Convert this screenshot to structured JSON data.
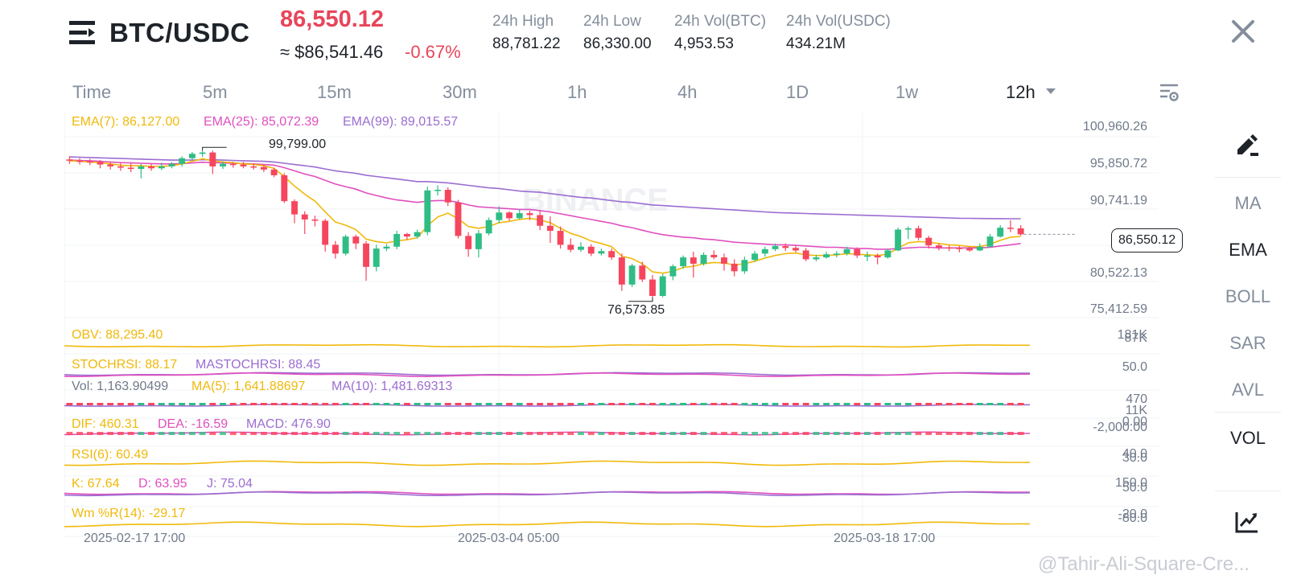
{
  "header": {
    "pair": "BTC/USDC",
    "last_price": "86,550.12",
    "approx_usd": "≈ $86,541.46",
    "change_pct": "-0.67%",
    "stats": [
      {
        "label": "24h High",
        "value": "88,781.22"
      },
      {
        "label": "24h Low",
        "value": "86,330.00"
      },
      {
        "label": "24h Vol(BTC)",
        "value": "4,953.53"
      },
      {
        "label": "24h Vol(USDC)",
        "value": "434.21M"
      }
    ]
  },
  "intervals": [
    "Time",
    "5m",
    "15m",
    "30m",
    "1h",
    "4h",
    "1D",
    "1w",
    "12h"
  ],
  "active_interval": "12h",
  "legend": {
    "ema7": "EMA(7): 86,127.00",
    "ema25": "EMA(25): 85,072.39",
    "ema99": "EMA(99): 89,015.57",
    "high_marker": "99,799.00",
    "low_marker": "76,573.85",
    "current_price_tag": "86,550.12"
  },
  "price_axis": [
    "100,960.26",
    "95,850.72",
    "90,741.19",
    "80,522.13",
    "75,412.59"
  ],
  "indicators": {
    "obv": "OBV: 88,295.40",
    "obv_axis": [
      "181K",
      "87K"
    ],
    "stochrsi": "STOCHRSI: 88.17",
    "mastochrsi": "MASTOCHRSI: 88.45",
    "stoch_axis": "50.0",
    "vol": "Vol: 1,163.90499",
    "vol_ma5": "MA(5): 1,641.88697",
    "vol_ma10": "MA(10): 1,481.69313",
    "vol_axis": [
      "470",
      "11K"
    ],
    "dif": "DIF: 460.31",
    "dea": "DEA: -16.59",
    "macd": "MACD: 476.90",
    "macd_axis": [
      "0.00",
      "-2,000.00"
    ],
    "rsi": "RSI(6): 60.49",
    "rsi_axis": [
      "40.0",
      "30.0"
    ],
    "k": "K: 67.64",
    "d": "D: 63.95",
    "j": "J: 75.04",
    "kdj_axis": [
      "150.0",
      "50.0"
    ],
    "wr": "Wm %R(14): -29.17",
    "wr_axis": [
      "-20.0",
      "-80.0"
    ]
  },
  "time_axis": [
    "2025-02-17 17:00",
    "2025-03-04 05:00",
    "2025-03-18 17:00"
  ],
  "tools": [
    "MA",
    "EMA",
    "BOLL",
    "SAR",
    "AVL",
    "VOL"
  ],
  "active_tools": [
    "EMA",
    "VOL"
  ],
  "chart_watermark": "BINANCE",
  "watermark": "@Tahir-Ali-Square-Cre...",
  "colors": {
    "up": "#2ebd85",
    "down": "#f6465d",
    "ema7": "#f0b90b",
    "ema25": "#e04fbf",
    "ema99": "#9b6dd1",
    "accent_red": "#e8455b"
  },
  "chart_data": {
    "type": "candlestick",
    "price_range": [
      74000,
      102000
    ],
    "candles": [
      [
        98400,
        98200,
        98900,
        97700
      ],
      [
        98200,
        98100,
        98600,
        97600
      ],
      [
        98100,
        98000,
        98500,
        97500
      ],
      [
        98000,
        97600,
        98300,
        97000
      ],
      [
        97600,
        97300,
        98000,
        96800
      ],
      [
        97300,
        97100,
        97800,
        96600
      ],
      [
        97100,
        96900,
        97800,
        96400
      ],
      [
        96900,
        97300,
        97700,
        95400
      ],
      [
        97300,
        97000,
        97700,
        96600
      ],
      [
        97000,
        97300,
        97900,
        96700
      ],
      [
        97300,
        97700,
        98000,
        97000
      ],
      [
        97700,
        98600,
        98900,
        97300
      ],
      [
        98600,
        99300,
        99600,
        98300
      ],
      [
        99300,
        99500,
        99800,
        98800
      ],
      [
        99500,
        97300,
        99799,
        96100
      ],
      [
        97300,
        97700,
        98100,
        96900
      ],
      [
        97700,
        97600,
        98000,
        97100
      ],
      [
        97600,
        97300,
        98000,
        97000
      ],
      [
        97300,
        97200,
        97700,
        96800
      ],
      [
        97200,
        96800,
        97600,
        96400
      ],
      [
        96800,
        95900,
        97100,
        95600
      ],
      [
        95900,
        91800,
        96200,
        91500
      ],
      [
        91800,
        89700,
        92100,
        88300
      ],
      [
        89700,
        88900,
        90200,
        86600
      ],
      [
        88900,
        88700,
        89500,
        87800
      ],
      [
        88700,
        84900,
        89000,
        83800
      ],
      [
        84900,
        83500,
        85500,
        82700
      ],
      [
        83500,
        86200,
        86500,
        83200
      ],
      [
        86200,
        85100,
        86500,
        84200
      ],
      [
        85100,
        81400,
        85500,
        79200
      ],
      [
        81400,
        84300,
        84900,
        80700
      ],
      [
        84300,
        84600,
        85000,
        83900
      ],
      [
        84600,
        86600,
        87100,
        84200
      ],
      [
        86600,
        86200,
        86800,
        85700
      ],
      [
        86200,
        86900,
        87300,
        85900
      ],
      [
        86900,
        93500,
        94100,
        86400
      ],
      [
        93500,
        93600,
        94300,
        92700
      ],
      [
        93600,
        91600,
        94000,
        91000
      ],
      [
        91600,
        86300,
        92000,
        85900
      ],
      [
        86300,
        84200,
        86900,
        83000
      ],
      [
        84200,
        86700,
        87200,
        82900
      ],
      [
        86700,
        88800,
        89200,
        86400
      ],
      [
        88800,
        90000,
        91000,
        88300
      ],
      [
        90000,
        89100,
        90200,
        88700
      ],
      [
        89100,
        89900,
        90500,
        88900
      ],
      [
        89900,
        89600,
        90300,
        88800
      ],
      [
        89600,
        87900,
        90300,
        87200
      ],
      [
        87900,
        87100,
        89400,
        85200
      ],
      [
        87100,
        84900,
        87800,
        84300
      ],
      [
        84900,
        84100,
        85900,
        83700
      ],
      [
        84100,
        84600,
        85300,
        83800
      ],
      [
        84600,
        83500,
        85000,
        83100
      ],
      [
        83500,
        83900,
        84300,
        83200
      ],
      [
        83900,
        82900,
        84300,
        82500
      ],
      [
        82900,
        78600,
        83500,
        77600
      ],
      [
        78600,
        81600,
        81900,
        78200
      ],
      [
        81600,
        79400,
        82200,
        79000
      ],
      [
        79400,
        76800,
        80100,
        76573.85
      ],
      [
        76800,
        79900,
        80300,
        76600
      ],
      [
        79900,
        81500,
        81800,
        79300
      ],
      [
        81500,
        82900,
        83200,
        81100
      ],
      [
        82900,
        81900,
        83800,
        79700
      ],
      [
        81900,
        83300,
        83700,
        81600
      ],
      [
        83300,
        82900,
        84000,
        82600
      ],
      [
        82900,
        81900,
        83500,
        80800
      ],
      [
        81900,
        80700,
        82600,
        79900
      ],
      [
        80700,
        82500,
        83000,
        80300
      ],
      [
        82500,
        83500,
        83900,
        82200
      ],
      [
        83500,
        84200,
        84600,
        83000
      ],
      [
        84200,
        84700,
        85100,
        83900
      ],
      [
        84700,
        84400,
        85100,
        83900
      ],
      [
        84400,
        84000,
        84800,
        83700
      ],
      [
        84000,
        82600,
        84400,
        82300
      ],
      [
        82600,
        82900,
        83300,
        82300
      ],
      [
        82900,
        83400,
        83800,
        82700
      ],
      [
        83400,
        83500,
        83900,
        82900
      ],
      [
        83500,
        84200,
        84600,
        83200
      ],
      [
        84200,
        83200,
        84500,
        82800
      ],
      [
        83200,
        83200,
        83800,
        82300
      ],
      [
        83200,
        82900,
        83500,
        81800
      ],
      [
        82900,
        84000,
        84300,
        82700
      ],
      [
        84000,
        87300,
        87600,
        83900
      ],
      [
        87300,
        87500,
        87800,
        85800
      ],
      [
        87500,
        86000,
        87900,
        85600
      ],
      [
        86000,
        84800,
        86300,
        84300
      ],
      [
        84800,
        84500,
        85100,
        84000
      ],
      [
        84500,
        84400,
        84800,
        83900
      ],
      [
        84400,
        84300,
        84700,
        83700
      ],
      [
        84300,
        84000,
        84600,
        83800
      ],
      [
        84000,
        84600,
        85100,
        83900
      ],
      [
        84600,
        86200,
        86600,
        84400
      ],
      [
        86200,
        87600,
        88000,
        86000
      ],
      [
        87600,
        87500,
        88781.22,
        86900
      ],
      [
        87500,
        86550.12,
        88000,
        86330
      ]
    ],
    "ema7": [
      98200,
      98100,
      98000,
      97900,
      97700,
      97500,
      97400,
      97400,
      97300,
      97300,
      97400,
      97700,
      98100,
      98500,
      98200,
      98000,
      97900,
      97700,
      97600,
      97400,
      97000,
      95700,
      94200,
      92900,
      91800,
      90100,
      88500,
      88000,
      87300,
      85800,
      85400,
      85200,
      85500,
      85700,
      86000,
      87900,
      89300,
      89900,
      89000,
      87800,
      87500,
      87800,
      88400,
      88600,
      88900,
      89100,
      88800,
      88400,
      87500,
      86700,
      86200,
      85500,
      85100,
      84600,
      83100,
      82700,
      81900,
      80600,
      80400,
      80700,
      81300,
      81500,
      81900,
      82100,
      82000,
      81700,
      81900,
      82300,
      82800,
      83200,
      83500,
      83600,
      83300,
      83200,
      83200,
      83300,
      83500,
      83400,
      83300,
      83200,
      83400,
      84400,
      85200,
      85400,
      85300,
      85100,
      84900,
      84800,
      84600,
      84600,
      85000,
      85600,
      86100,
      86200
    ],
    "ema25": [
      98300,
      98250,
      98200,
      98100,
      98000,
      97900,
      97850,
      97800,
      97750,
      97700,
      97700,
      97750,
      97850,
      97950,
      97900,
      97850,
      97800,
      97750,
      97700,
      97600,
      97500,
      97100,
      96600,
      96100,
      95700,
      95100,
      94500,
      94100,
      93700,
      93100,
      92700,
      92300,
      92000,
      91800,
      91600,
      91800,
      91900,
      91900,
      91600,
      91200,
      90900,
      90800,
      90700,
      90600,
      90500,
      90500,
      90300,
      90100,
      89800,
      89500,
      89200,
      88900,
      88600,
      88300,
      87900,
      87600,
      87200,
      86800,
      86500,
      86300,
      86100,
      86000,
      85800,
      85700,
      85500,
      85300,
      85200,
      85100,
      85000,
      84900,
      84900,
      84800,
      84700,
      84600,
      84500,
      84500,
      84400,
      84300,
      84300,
      84200,
      84200,
      84300,
      84400,
      84500,
      84500,
      84400,
      84400,
      84400,
      84400,
      84400,
      84500,
      84700,
      84900,
      85100
    ],
    "ema99": [
      98800,
      98750,
      98700,
      98650,
      98600,
      98550,
      98500,
      98450,
      98400,
      98350,
      98300,
      98300,
      98300,
      98350,
      98350,
      98300,
      98250,
      98200,
      98150,
      98100,
      98000,
      97800,
      97600,
      97400,
      97200,
      96900,
      96600,
      96400,
      96200,
      95900,
      95700,
      95500,
      95300,
      95100,
      94900,
      94900,
      94800,
      94700,
      94500,
      94300,
      94100,
      93900,
      93800,
      93600,
      93400,
      93300,
      93200,
      93000,
      92800,
      92600,
      92400,
      92300,
      92100,
      91900,
      91700,
      91600,
      91400,
      91200,
      91100,
      91000,
      90900,
      90800,
      90700,
      90600,
      90500,
      90400,
      90300,
      90200,
      90100,
      90000,
      89950,
      89900,
      89850,
      89800,
      89750,
      89700,
      89650,
      89600,
      89550,
      89500,
      89450,
      89400,
      89350,
      89300,
      89250,
      89200,
      89150,
      89100,
      89080,
      89060,
      89040,
      89030,
      89020,
      89015.57
    ]
  }
}
